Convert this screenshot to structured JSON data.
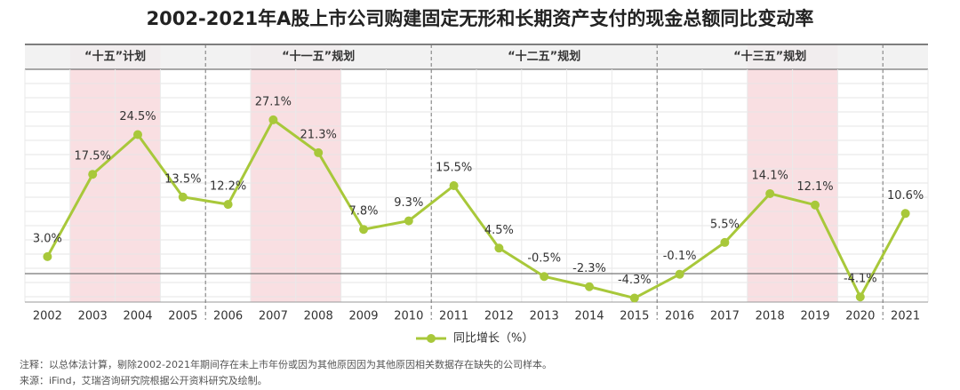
{
  "chart_data": {
    "type": "line",
    "title": "2002-2021年A股上市公司购建固定无形和长期资产支付的现金总额同比变动率",
    "categories": [
      "2002",
      "2003",
      "2004",
      "2005",
      "2006",
      "2007",
      "2008",
      "2009",
      "2010",
      "2011",
      "2012",
      "2013",
      "2014",
      "2015",
      "2016",
      "2017",
      "2018",
      "2019",
      "2020",
      "2021"
    ],
    "series": [
      {
        "name": "同比增长（%）",
        "color": "#a8c83a",
        "values": [
          3.0,
          17.5,
          24.5,
          13.5,
          12.2,
          27.1,
          21.3,
          7.8,
          9.3,
          15.5,
          4.5,
          -0.5,
          -2.3,
          -4.3,
          -0.1,
          5.5,
          14.1,
          12.1,
          -4.1,
          10.6
        ],
        "value_labels": [
          "3.0%",
          "17.5%",
          "24.5%",
          "13.5%",
          "12.2%",
          "27.1%",
          "21.3%",
          "7.8%",
          "9.3%",
          "15.5%",
          "4.5%",
          "-0.5%",
          "-2.3%",
          "-4.3%",
          "-0.1%",
          "5.5%",
          "14.1%",
          "12.1%",
          "-4.1%",
          "10.6%"
        ]
      }
    ],
    "ylim": [
      -5,
      36
    ],
    "periods": [
      {
        "label": "“十五”计划",
        "start": "2002",
        "end": "2005"
      },
      {
        "label": "“十一五”规划",
        "start": "2006",
        "end": "2010"
      },
      {
        "label": "“十二五”规划",
        "start": "2011",
        "end": "2015"
      },
      {
        "label": "“十三五”规划",
        "start": "2016",
        "end": "2020"
      }
    ],
    "highlight": [
      "2003",
      "2004",
      "2007",
      "2008",
      "2018",
      "2019"
    ],
    "highlight_color": "#f9dfe2",
    "notes": [
      "注释：以总体法计算，剔除2002-2021年期间存在未上市年份或因为其他原因因为其他原因相关数据存在缺失的公司样本。",
      "来源：iFind，艾瑞咨询研究院根据公开资料研究及绘制。"
    ]
  }
}
